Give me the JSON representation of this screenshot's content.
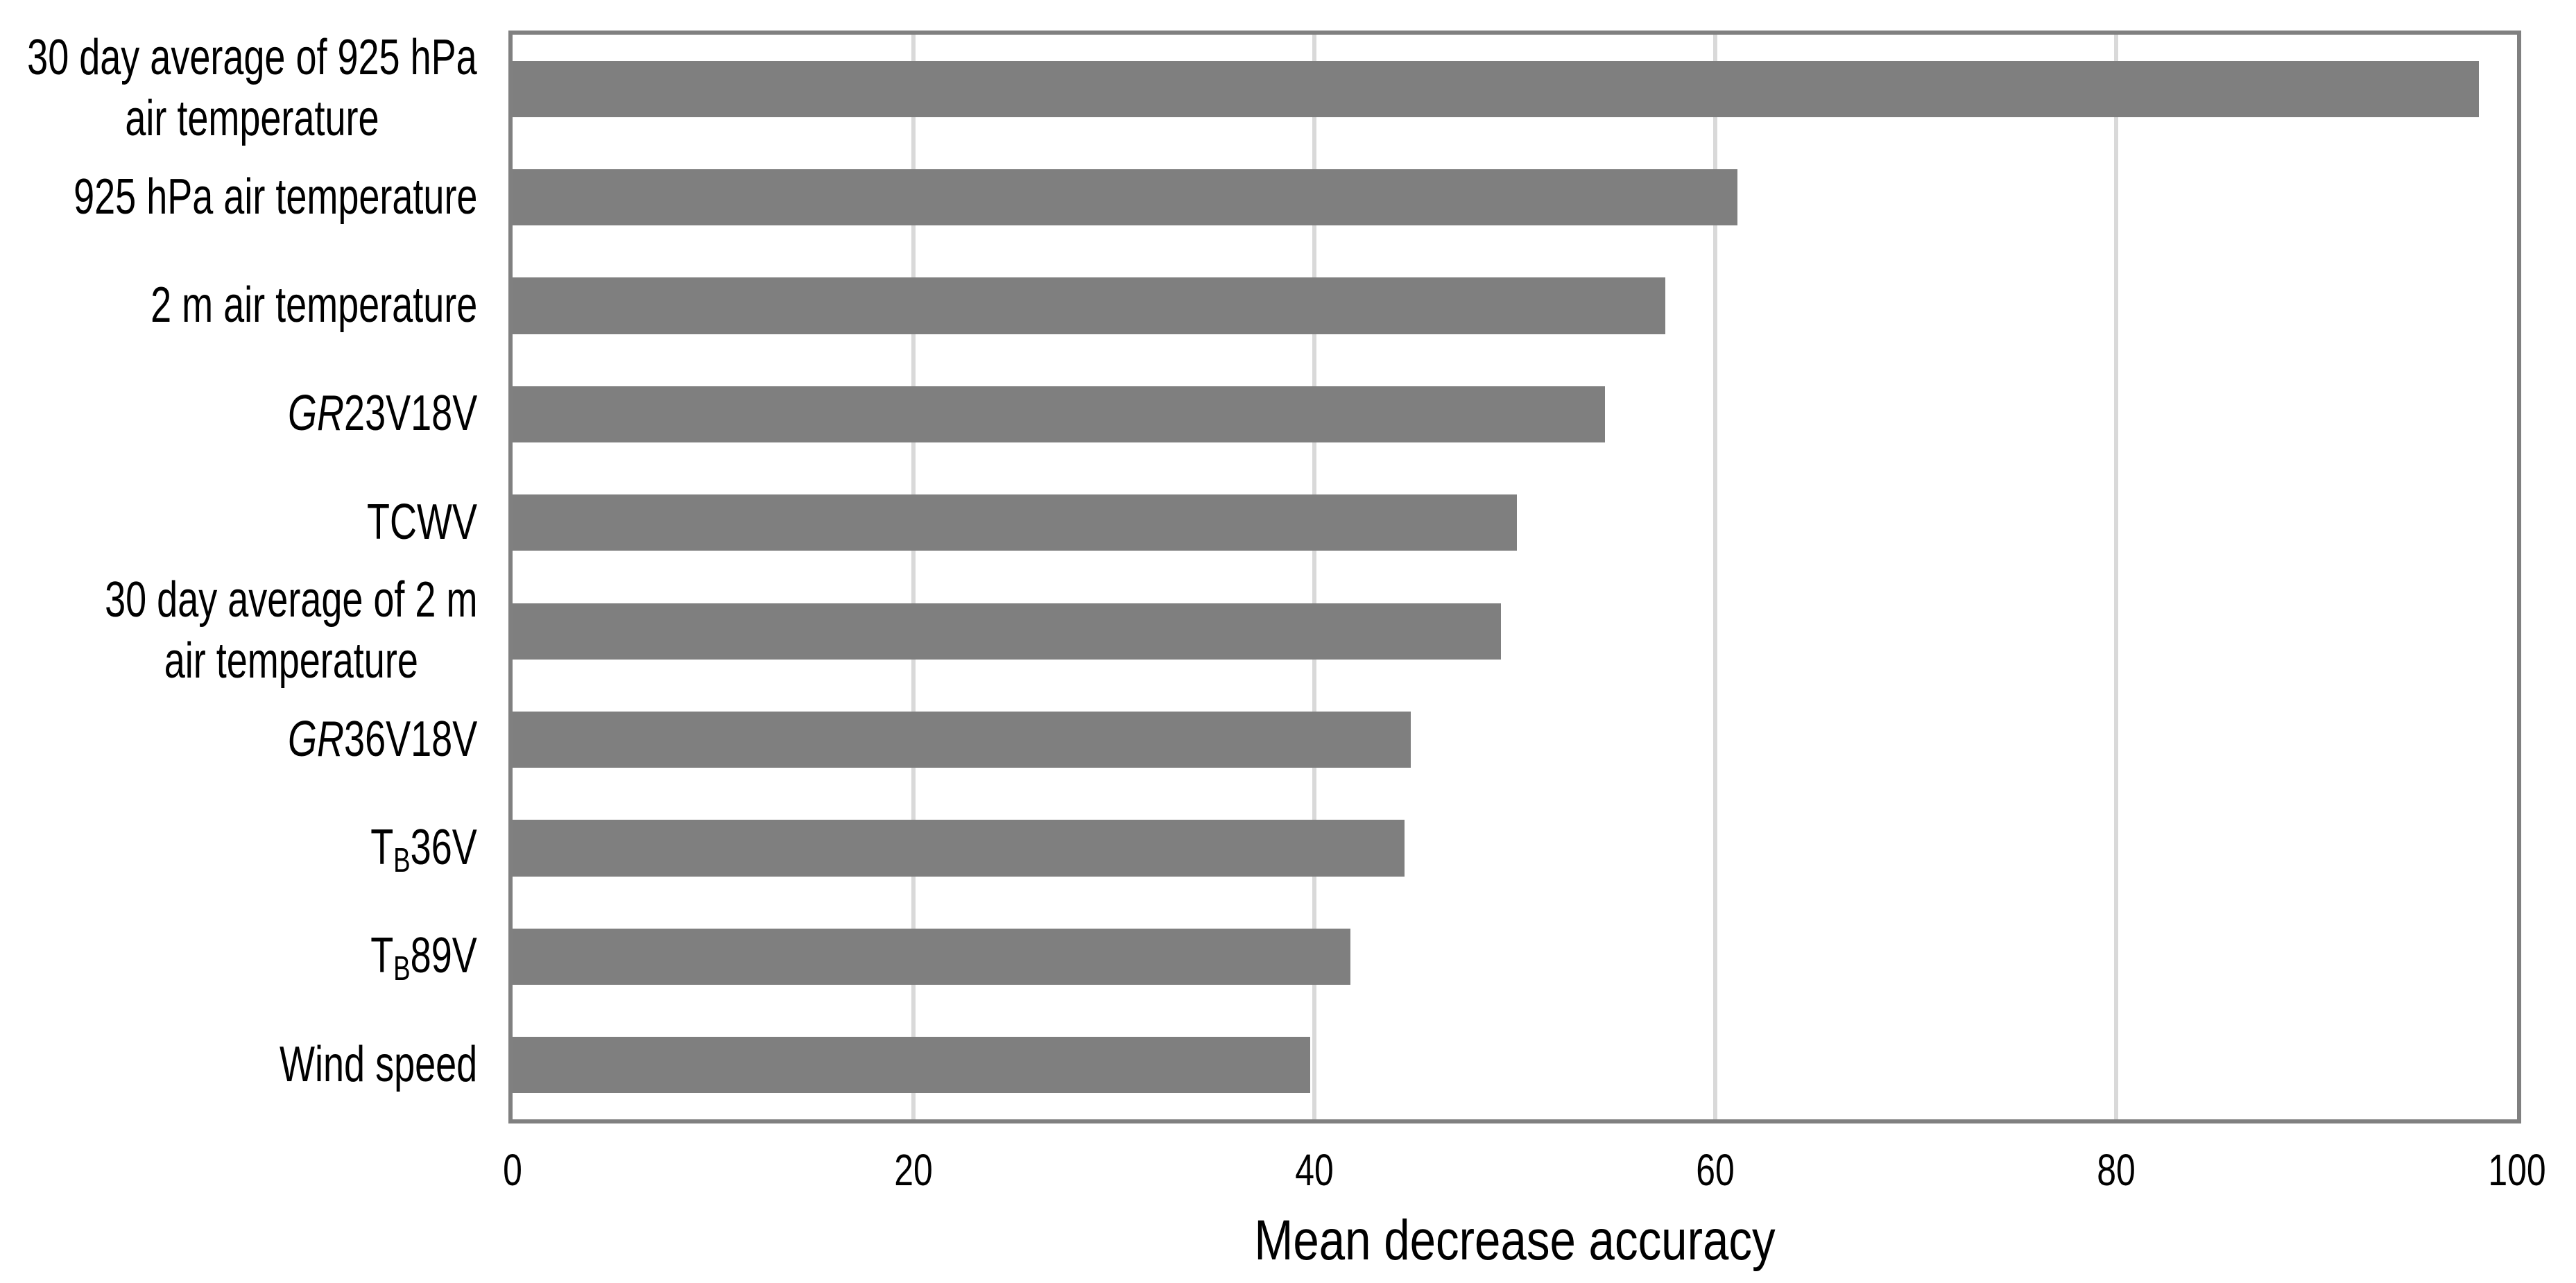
{
  "chart_data": {
    "type": "bar",
    "orientation": "horizontal",
    "title": "",
    "xlabel": "Mean decrease accuracy",
    "ylabel": "",
    "xlim": [
      0,
      100
    ],
    "xticks": [
      0,
      20,
      40,
      60,
      80,
      100
    ],
    "gridline_values": [
      20,
      40,
      60,
      80
    ],
    "grid": "vertical",
    "legend": "none",
    "categories": [
      "30 day average of 925 hPa air temperature",
      "925 hPa air temperature",
      "2 m air temperature",
      "GR23V18V",
      "TCWV",
      "30 day average of 2 m air temperature",
      "GR36V18V",
      "TB36V",
      "TB89V",
      "Wind speed"
    ],
    "values": [
      98.1,
      61.1,
      57.5,
      54.5,
      50.1,
      49.3,
      44.8,
      44.5,
      41.8,
      39.8
    ],
    "category_label_lines": [
      [
        [
          {
            "text": "30 day average of 925 hPa"
          }
        ],
        [
          {
            "text": "air temperature"
          }
        ]
      ],
      [
        [
          {
            "text": "925 hPa air temperature"
          }
        ]
      ],
      [
        [
          {
            "text": "2 m air temperature"
          }
        ]
      ],
      [
        [
          {
            "text": "GR",
            "italic": true
          },
          {
            "text": "23V18V"
          }
        ]
      ],
      [
        [
          {
            "text": "TCWV"
          }
        ]
      ],
      [
        [
          {
            "text": "30 day average of 2 m"
          }
        ],
        [
          {
            "text": "air temperature"
          }
        ]
      ],
      [
        [
          {
            "text": "GR",
            "italic": true
          },
          {
            "text": "36V18V"
          }
        ]
      ],
      [
        [
          {
            "text": "T"
          },
          {
            "text": "B",
            "sub": true
          },
          {
            "text": "36V"
          }
        ]
      ],
      [
        [
          {
            "text": "T"
          },
          {
            "text": "B",
            "sub": true
          },
          {
            "text": "89V"
          }
        ]
      ],
      [
        [
          {
            "text": "Wind speed"
          }
        ]
      ]
    ],
    "colors": {
      "bar": "#7f7f7f",
      "axis": "#808080",
      "gridline": "#d9d9d9",
      "text": "#000000",
      "background": "#ffffff"
    }
  }
}
